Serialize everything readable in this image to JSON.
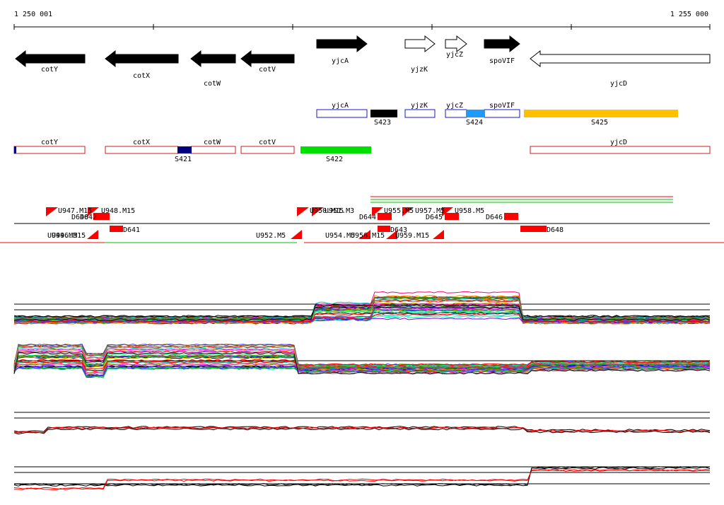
{
  "coordinates": {
    "start_label": "1 250 001",
    "end_label": "1 255 000"
  },
  "genes": [
    {
      "name": "cotY",
      "strand": "-",
      "fill": "#000000"
    },
    {
      "name": "cotX",
      "strand": "-",
      "fill": "#000000"
    },
    {
      "name": "cotW",
      "strand": "-",
      "fill": "#000000"
    },
    {
      "name": "cotV",
      "strand": "-",
      "fill": "#000000"
    },
    {
      "name": "yjcA",
      "strand": "+",
      "fill": "#000000"
    },
    {
      "name": "yjzK",
      "strand": "+",
      "fill": "#ffffff"
    },
    {
      "name": "yjcZ",
      "strand": "+",
      "fill": "#ffffff"
    },
    {
      "name": "spoVIF",
      "strand": "+",
      "fill": "#000000"
    },
    {
      "name": "yjcD",
      "strand": "-",
      "fill": "#ffffff"
    }
  ],
  "forward_track": {
    "boxes": [
      {
        "name": "yjcA",
        "color": "#1a1acc"
      },
      {
        "name": "yjzK",
        "color": "#1a1acc"
      },
      {
        "name": "yjcZ",
        "color": "#1a1acc"
      },
      {
        "name": "spoVIF",
        "color": "#1a1acc"
      }
    ],
    "segments": [
      {
        "name": "S423",
        "color": "#000000"
      },
      {
        "name": "S424",
        "color": "#1e9bff"
      },
      {
        "name": "S425",
        "color": "#ffc000"
      }
    ]
  },
  "reverse_track": {
    "boxes": [
      {
        "name": "cotY",
        "color": "#d01c1c"
      },
      {
        "name": "cotX",
        "color": "#d01c1c"
      },
      {
        "name": "cotW",
        "color": "#d01c1c"
      },
      {
        "name": "cotV",
        "color": "#d01c1c"
      },
      {
        "name": "yjcD",
        "color": "#d01c1c"
      }
    ],
    "segments": [
      {
        "name": "S421",
        "color": "#00007f"
      },
      {
        "name": "S422",
        "color": "#00e000"
      }
    ]
  },
  "features": {
    "upper_labels": [
      "U947.M15",
      "D640",
      "D642",
      "U948.M15",
      "U950.M15",
      "U951.M3",
      "D644",
      "U955.M5",
      "U957.M5",
      "D645",
      "U958.M5",
      "D646"
    ],
    "lower_labels": [
      "U949.M3",
      "U946.M15",
      "D641",
      "U952.M5",
      "U954.M5",
      "U956.M15",
      "D643",
      "U959.M15",
      "D648"
    ],
    "color": "#ff0000"
  },
  "profiles": {
    "panel_colors": [
      "#000000",
      "#ff0000",
      "#00c000",
      "#0000ff",
      "#ff00ff",
      "#00c0c0",
      "#c0c000",
      "#ff8000",
      "#8000ff",
      "#008080",
      "#804000",
      "#ff0080",
      "#00ff80",
      "#808080",
      "#4040ff",
      "#40a000"
    ],
    "pair_colors": [
      "#000000",
      "#ff0000"
    ]
  }
}
